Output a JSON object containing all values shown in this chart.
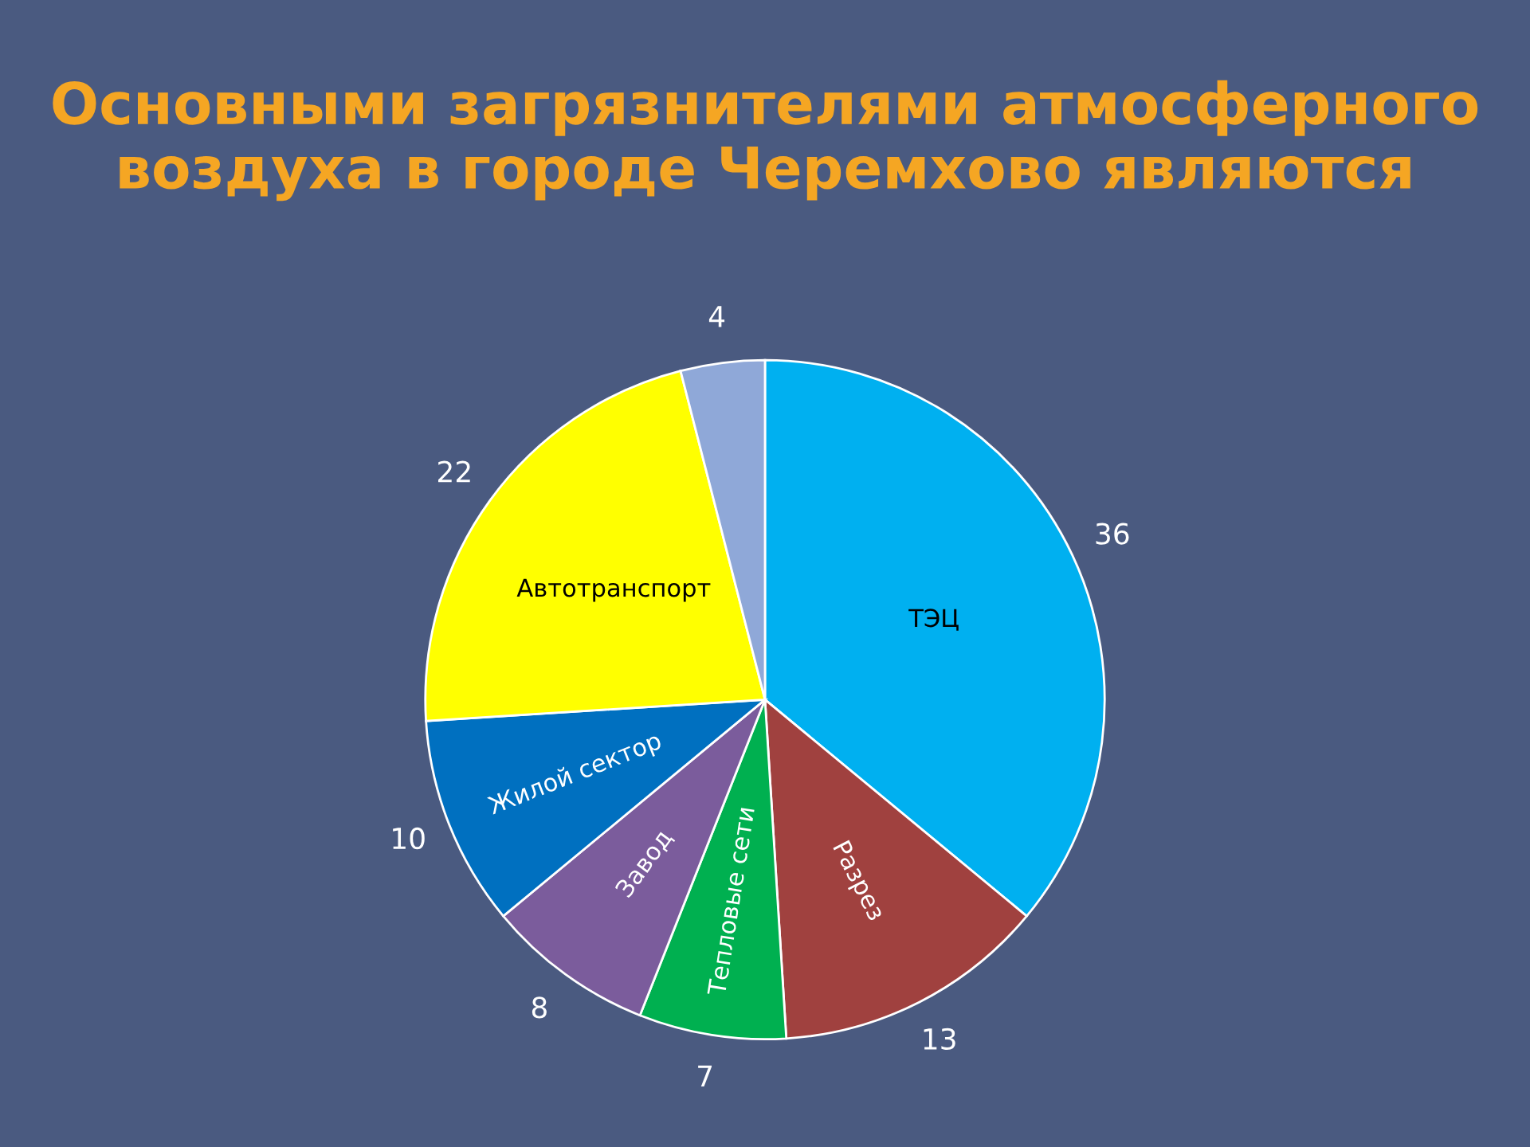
{
  "chart_data": {
    "type": "pie",
    "title": "Основными загрязнителями атмосферного воздуха в городе Черемхово являются",
    "categories": [
      "ТЭЦ",
      "Разрез",
      "Тепловые сети",
      "Завод",
      "Жилой сектор",
      "Автотранспорт",
      null
    ],
    "values": [
      36,
      13,
      7,
      8,
      10,
      22,
      4
    ],
    "colors": [
      "#00b0f0",
      "#a0413f",
      "#00b050",
      "#7b5c9c",
      "#0070c0",
      "#ffff00",
      "#8fa8d8"
    ],
    "data_labels": true,
    "legend": false
  }
}
